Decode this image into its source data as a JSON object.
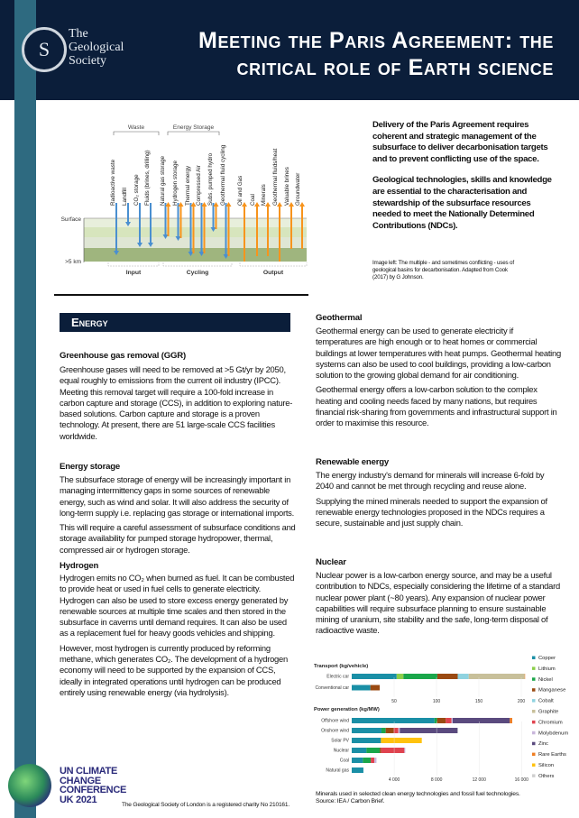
{
  "header": {
    "logo_text": [
      "The",
      "Geological",
      "Society"
    ],
    "title_line1": "Meeting the Paris Agreement: the",
    "title_line2": "critical role of Earth science"
  },
  "diagram": {
    "group_labels": {
      "waste": "Waste",
      "energy_storage": "Energy Storage"
    },
    "surface_label": "Surface",
    "depth_label": ">5 km",
    "section_labels": {
      "input": "Input",
      "cycling": "Cycling",
      "output": "Output"
    },
    "input": [
      "Radioactive waste",
      "Landfill",
      "CO₂ storage",
      "Fluids (brines, drilling)"
    ],
    "cycling": [
      "Natural gas storage",
      "Hydrogen storage",
      "Thermal energy",
      "Compressed Air",
      "Subs. pumped hydro",
      "Geothermal fluid cycling"
    ],
    "output": [
      "Oil and Gas",
      "Coal",
      "Minerals",
      "Geothermal fluids/heat",
      "Valuable brines",
      "Groundwater"
    ],
    "colors": {
      "input": "#4a8fd0",
      "output": "#f7941d"
    }
  },
  "intro": {
    "p1": "Delivery of the Paris Agreement requires coherent and strategic management of the subsurface to deliver decarbonisation targets and to prevent conflicting use of the space.",
    "p2": "Geological technologies, skills and knowledge are essential to the characterisation and stewardship of the subsurface resources needed to meet the Nationally Determined Contributions (NDCs).",
    "credit": "Image left:  The multiple - and sometimes conflicting - uses of geological basins for decarbonisation. Adapted from Cook (2017) by G Johnson."
  },
  "energy": {
    "section_title": "Energy",
    "ggr": {
      "heading": "Greenhouse gas removal (GGR)",
      "p1": "Greenhouse gases will need to be removed at >5 Gt/yr by 2050, equal roughly to emissions from the current oil industry (IPCC).  Meeting this removal target will require a 100-fold increase in carbon capture and storage (CCS), in addition to exploring nature-based solutions. Carbon capture and storage is a proven technology. At present, there are 51 large-scale CCS facilities worldwide."
    },
    "storage": {
      "heading": "Energy storage",
      "p1": "The subsurface storage of energy will be increasingly important in managing intermittency gaps in some sources of renewable energy, such as wind and solar. It will also address the security of long-term supply i.e. replacing gas storage or international imports.",
      "p2": "This will require a careful assessment of subsurface conditions and storage availability for pumped storage hydropower, thermal, compressed air or hydrogen storage."
    },
    "hydrogen": {
      "heading": "Hydrogen",
      "p1": "Hydrogen emits no CO₂ when burned as fuel. It can be combusted to provide heat or used in fuel cells to generate electricity. Hydrogen can also be used to store excess energy generated by renewable sources at multiple time scales and then stored in the subsurface in caverns until demand requires. It can also be used as a replacement fuel for heavy goods vehicles and shipping.",
      "p2": "However, most hydrogen is currently produced by reforming methane, which generates CO₂. The development of a hydrogen economy will need to be supported by the expansion of CCS, ideally in integrated operations until hydrogen can be produced entirely using renewable energy (via hydrolysis)."
    },
    "geothermal": {
      "heading": "Geothermal",
      "p1": "Geothermal energy can be used to generate electricity if temperatures are high enough or to heat homes or commercial buildings at lower temperatures with heat pumps. Geothermal heating systems can also be used to cool buildings, providing a low-carbon solution to the growing global demand for air conditioning.",
      "p2": "Geothermal energy offers a low-carbon solution to the complex heating and cooling needs faced by many nations, but requires financial risk-sharing from governments and infrastructural support in order to maximise this resource."
    },
    "renewable": {
      "heading": "Renewable energy",
      "p1": "The energy industry's demand for minerals will increase 6-fold by 2040 and cannot be met through recycling and reuse alone.",
      "p2": "Supplying the mined minerals needed to support the expansion of renewable energy technologies proposed in the NDCs requires a secure, sustainable and just supply chain."
    },
    "nuclear": {
      "heading": "Nuclear",
      "p1": "Nuclear power is a low-carbon energy source, and may be a useful contribution to NDCs, especially considering the lifetime of a standard nuclear power plant (~80 years).  Any expansion of nuclear power capabilities will require subsurface planning to ensure sustainable mining of uranium, site stability and the safe, long-term disposal of radioactive waste."
    }
  },
  "chart_data": {
    "type": "bar",
    "stacked": true,
    "orientation": "horizontal",
    "legend": [
      "Copper",
      "Lithium",
      "Nickel",
      "Manganese",
      "Cobalt",
      "Graphite",
      "Chromium",
      "Molybdenum",
      "Zinc",
      "Rare Earths",
      "Silicon",
      "Others"
    ],
    "legend_placement": "right",
    "colors": {
      "Copper": "#1a8fa6",
      "Lithium": "#8ccf4a",
      "Nickel": "#1aa64a",
      "Manganese": "#9a4a12",
      "Cobalt": "#8fd3e0",
      "Graphite": "#c8c09a",
      "Chromium": "#e0434f",
      "Molybdenum": "#c9b6dc",
      "Zinc": "#5a4a7e",
      "Rare Earths": "#ef7d22",
      "Silicon": "#ffc20e",
      "Others": "#cfcfcf"
    },
    "panels": [
      {
        "title": "Transport (kg/vehicle)",
        "xlim": [
          0,
          210
        ],
        "ticks": [
          "50",
          "100",
          "150",
          "200"
        ],
        "tick_values": [
          50,
          100,
          150,
          200
        ],
        "categories": [
          "Electric car",
          "Conventional car"
        ],
        "values": [
          {
            "Copper": 53,
            "Lithium": 8,
            "Nickel": 40,
            "Manganese": 24,
            "Cobalt": 13,
            "Graphite": 66,
            "Rare Earths": 0.5
          },
          {
            "Copper": 22,
            "Manganese": 11
          }
        ]
      },
      {
        "title": "Power generation (kg/MW)",
        "xlim": [
          0,
          17000
        ],
        "ticks": [
          "4 000",
          "8 000",
          "12 000",
          "16 000"
        ],
        "tick_values": [
          4000,
          8000,
          12000,
          16000
        ],
        "categories": [
          "Offshore wind",
          "Onshore wind",
          "Solar PV",
          "Nuclear",
          "Coal",
          "Natural gas"
        ],
        "values": [
          {
            "Copper": 7800,
            "Nickel": 240,
            "Manganese": 820,
            "Chromium": 540,
            "Molybdenum": 110,
            "Zinc": 5380,
            "Rare Earths": 230
          },
          {
            "Copper": 2800,
            "Nickel": 400,
            "Manganese": 770,
            "Chromium": 420,
            "Molybdenum": 140,
            "Zinc": 5440,
            "Others": 50
          },
          {
            "Copper": 2750,
            "Silicon": 3850
          },
          {
            "Copper": 1390,
            "Nickel": 1250,
            "Manganese": 140,
            "Chromium": 2180,
            "Molybdenum": 85
          },
          {
            "Copper": 1050,
            "Nickel": 740,
            "Molybdenum": 200,
            "Chromium": 340
          },
          {
            "Copper": 1100
          }
        ]
      }
    ],
    "caption": "Minerals used in selected clean energy technologies and fossil fuel technologies.",
    "source": "Source: IEA / Carbon Brief."
  },
  "footer": {
    "cop_lines": [
      "UN CLIMATE",
      "CHANGE",
      "CONFERENCE",
      "UK 2021"
    ],
    "charity": "The Geological Society of London is a registered charity No 210161."
  }
}
